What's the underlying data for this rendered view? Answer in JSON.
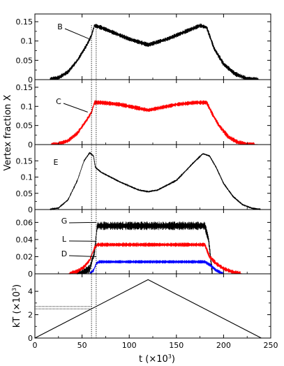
{
  "figure": {
    "ylabel": "Vertex fraction X",
    "xlabel": "t (×10",
    "xlabel_sup": "3",
    "xlabel_close": ")"
  },
  "chart_data": [
    {
      "type": "line",
      "panel": "B",
      "ylim": [
        0,
        0.17
      ],
      "yticks": [
        0,
        0.05,
        0.1,
        0.15
      ],
      "yticklabels": [
        "0",
        "0.05",
        "0.1",
        "0.15"
      ],
      "xlim": [
        0,
        250
      ],
      "annotations": [
        {
          "label": "B",
          "x": 58,
          "y": 0.105
        }
      ],
      "series": [
        {
          "color": "#000000",
          "noise": 0.012,
          "x": [
            0,
            15,
            25,
            35,
            45,
            55,
            60,
            63,
            70,
            85,
            100,
            120,
            140,
            160,
            175,
            182,
            190,
            200,
            212,
            225,
            240
          ],
          "y": [
            0,
            0,
            0.005,
            0.02,
            0.05,
            0.09,
            0.115,
            0.14,
            0.135,
            0.12,
            0.105,
            0.09,
            0.105,
            0.125,
            0.14,
            0.135,
            0.08,
            0.04,
            0.015,
            0.002,
            0
          ]
        }
      ]
    },
    {
      "type": "line",
      "panel": "C",
      "ylim": [
        0,
        0.17
      ],
      "yticks": [
        0,
        0.05,
        0.1,
        0.15
      ],
      "yticklabels": [
        "0",
        "0.05",
        "0.1",
        "0.15"
      ],
      "xlim": [
        0,
        250
      ],
      "annotations": [
        {
          "label": "C",
          "x": 56,
          "y": 0.085
        }
      ],
      "series": [
        {
          "color": "#ff0000",
          "noise": 0.012,
          "x": [
            0,
            15,
            25,
            35,
            45,
            55,
            60,
            63,
            70,
            90,
            110,
            120,
            130,
            150,
            170,
            182,
            188,
            195,
            205,
            215,
            225,
            240
          ],
          "y": [
            0,
            0,
            0.002,
            0.01,
            0.03,
            0.065,
            0.085,
            0.11,
            0.11,
            0.105,
            0.095,
            0.09,
            0.095,
            0.105,
            0.11,
            0.11,
            0.08,
            0.05,
            0.02,
            0.006,
            0.001,
            0
          ]
        }
      ]
    },
    {
      "type": "line",
      "panel": "E",
      "ylim": [
        0,
        0.2
      ],
      "yticks": [
        0,
        0.05,
        0.1,
        0.15
      ],
      "yticklabels": [
        "0",
        "0.05",
        "0.1",
        "0.15"
      ],
      "xlim": [
        0,
        250
      ],
      "annotations": [
        {
          "label": "E",
          "x": null,
          "y": null
        }
      ],
      "series": [
        {
          "color": "#000000",
          "noise": 0.005,
          "x": [
            0,
            15,
            25,
            35,
            45,
            52,
            58,
            62,
            64,
            70,
            90,
            110,
            120,
            130,
            150,
            170,
            178,
            185,
            192,
            200,
            210,
            220,
            230,
            240
          ],
          "y": [
            0,
            0,
            0.005,
            0.03,
            0.09,
            0.15,
            0.175,
            0.165,
            0.13,
            0.115,
            0.085,
            0.06,
            0.055,
            0.06,
            0.09,
            0.15,
            0.172,
            0.165,
            0.13,
            0.08,
            0.04,
            0.015,
            0.004,
            0
          ]
        }
      ]
    },
    {
      "type": "line",
      "panel": "G L D",
      "ylim": [
        0,
        0.075
      ],
      "yticks": [
        0,
        0.02,
        0.04,
        0.06
      ],
      "yticklabels": [
        "0",
        "0.02",
        "0.04",
        "0.06"
      ],
      "xlim": [
        0,
        250
      ],
      "annotations": [
        {
          "label": "G",
          "x": 65,
          "y": 0.06
        },
        {
          "label": "L",
          "x": 65,
          "y": 0.038
        },
        {
          "label": "D",
          "x": 65,
          "y": 0.02
        }
      ],
      "series": [
        {
          "color": "#000000",
          "noise": 0.01,
          "x": [
            0,
            40,
            50,
            58,
            63,
            66,
            120,
            180,
            184,
            188,
            250
          ],
          "y": [
            0,
            0,
            0.001,
            0.006,
            0.025,
            0.056,
            0.056,
            0.056,
            0.04,
            0,
            0
          ]
        },
        {
          "color": "#ff0000",
          "noise": 0.005,
          "x": [
            0,
            35,
            45,
            52,
            58,
            63,
            66,
            120,
            180,
            185,
            192,
            200,
            210,
            220,
            250
          ],
          "y": [
            0,
            0,
            0.003,
            0.008,
            0.016,
            0.03,
            0.034,
            0.034,
            0.034,
            0.02,
            0.012,
            0.006,
            0.002,
            0,
            0
          ]
        },
        {
          "color": "#0000ff",
          "noise": 0.004,
          "x": [
            0,
            58,
            62,
            65,
            68,
            120,
            180,
            186,
            192,
            200,
            250
          ],
          "y": [
            0,
            0,
            0.004,
            0.012,
            0.014,
            0.014,
            0.014,
            0.01,
            0.004,
            0,
            0
          ]
        }
      ]
    },
    {
      "type": "line",
      "panel": "kT",
      "ylabel": "kT (×10",
      "ylabel_sup": "3",
      "ylabel_close": ")",
      "ylim": [
        0,
        5.5
      ],
      "yticks": [
        0,
        2,
        4
      ],
      "yticklabels": [
        "0",
        "2",
        "4"
      ],
      "xlim": [
        0,
        250
      ],
      "xticks": [
        0,
        50,
        100,
        150,
        200,
        250
      ],
      "xticklabels": [
        "0",
        "50",
        "100",
        "150",
        "200",
        "250"
      ],
      "series": [
        {
          "color": "#000000",
          "noise": 0,
          "x": [
            0,
            120,
            240
          ],
          "y": [
            0,
            5,
            0
          ]
        }
      ],
      "reference_lines": {
        "x": [
          60,
          65
        ],
        "y": [
          2.5,
          2.7
        ]
      }
    }
  ]
}
